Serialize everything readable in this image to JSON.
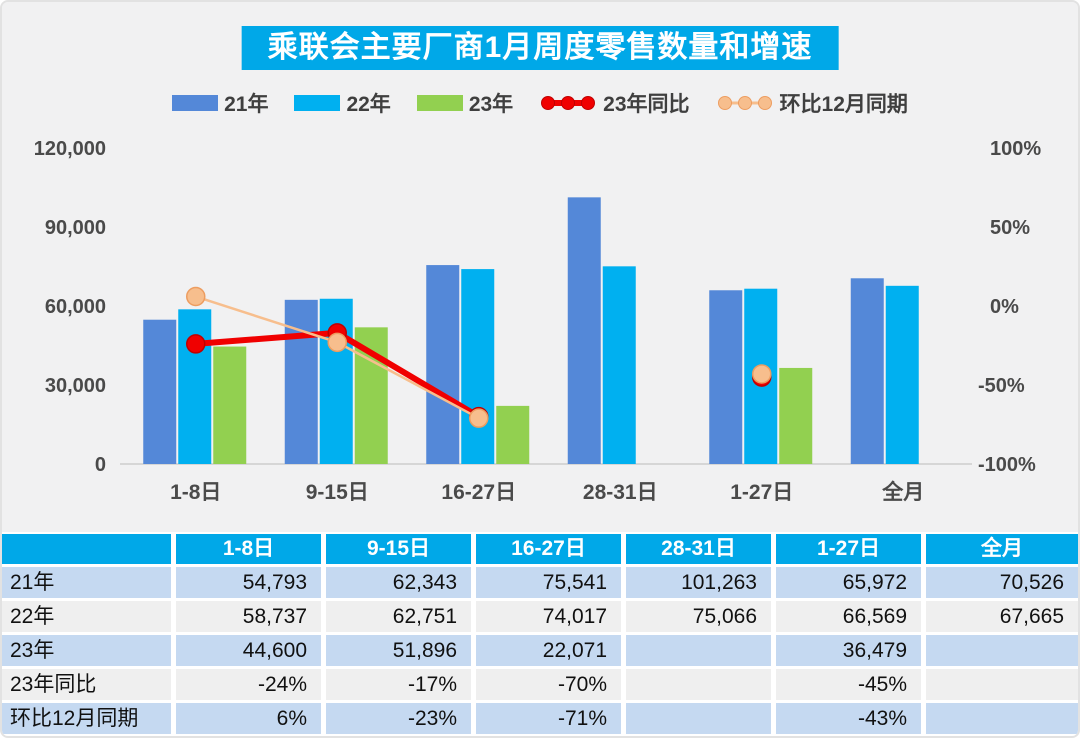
{
  "title": "乘联会主要厂商1月周度零售数量和增速",
  "colors": {
    "title_bg": "#00A8E8",
    "table_header_bg": "#00A8E8",
    "row_blue": "#C5D9F1",
    "row_grey": "#EFEFEF",
    "bar_21": "#5488D8",
    "bar_22": "#00B0F0",
    "bar_23": "#92D050",
    "line_yoy": "#F00000",
    "line_yoy_edge": "#C00000",
    "line_mom": "#F7BE8D",
    "line_mom_edge": "#ED9D60",
    "axis_text": "#4A4A4A",
    "baseline": "#D6D6D6",
    "chart_bg": "#F1F1F2"
  },
  "chart_data": {
    "type": "bar",
    "subtype": "grouped bars with two percentage lines on secondary axis",
    "title": "乘联会主要厂商1月周度零售数量和增速",
    "categories": [
      "1-8日",
      "9-15日",
      "16-27日",
      "28-31日",
      "1-27日",
      "全月"
    ],
    "series": [
      {
        "name": "21年",
        "kind": "bar",
        "color": "#5488D8",
        "axis": "left",
        "values": [
          54793,
          62343,
          75541,
          101263,
          65972,
          70526
        ]
      },
      {
        "name": "22年",
        "kind": "bar",
        "color": "#00B0F0",
        "axis": "left",
        "values": [
          58737,
          62751,
          74017,
          75066,
          66569,
          67665
        ]
      },
      {
        "name": "23年",
        "kind": "bar",
        "color": "#92D050",
        "axis": "left",
        "values": [
          44600,
          51896,
          22071,
          null,
          36479,
          null
        ]
      },
      {
        "name": "23年同比",
        "kind": "line",
        "color": "#F00000",
        "edge": "#C00000",
        "width": 6,
        "axis": "right",
        "values": [
          -24,
          -17,
          -70,
          null,
          -45,
          null
        ]
      },
      {
        "name": "环比12月同期",
        "kind": "line",
        "color": "#F7BE8D",
        "edge": "#ED9D60",
        "width": 2.5,
        "axis": "right",
        "values": [
          6,
          -23,
          -71,
          null,
          -43,
          null
        ]
      }
    ],
    "left_axis": {
      "ticks": [
        "0",
        "30,000",
        "60,000",
        "90,000",
        "120,000"
      ],
      "min": 0,
      "max": 120000,
      "grid": false
    },
    "right_axis": {
      "ticks": [
        "-100%",
        "-50%",
        "0%",
        "50%",
        "100%"
      ],
      "min": -100,
      "max": 100,
      "grid": false
    },
    "legend_position": "top",
    "xlabel": "",
    "ylabel": ""
  },
  "table": {
    "header": [
      "",
      "1-8日",
      "9-15日",
      "16-27日",
      "28-31日",
      "1-27日",
      "全月"
    ],
    "rows": [
      {
        "label": "21年",
        "cells": [
          "54,793",
          "62,343",
          "75,541",
          "101,263",
          "65,972",
          "70,526"
        ]
      },
      {
        "label": "22年",
        "cells": [
          "58,737",
          "62,751",
          "74,017",
          "75,066",
          "66,569",
          "67,665"
        ]
      },
      {
        "label": "23年",
        "cells": [
          "44,600",
          "51,896",
          "22,071",
          "",
          "36,479",
          ""
        ]
      },
      {
        "label": "23年同比",
        "cells": [
          "-24%",
          "-17%",
          "-70%",
          "",
          "-45%",
          ""
        ]
      },
      {
        "label": "环比12月同期",
        "cells": [
          "6%",
          "-23%",
          "-71%",
          "",
          "-43%",
          ""
        ]
      }
    ]
  }
}
